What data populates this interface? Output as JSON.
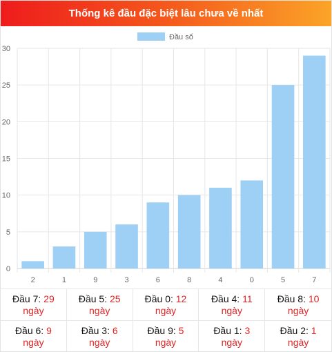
{
  "header": {
    "title": "Thống kê đầu đặc biệt lâu chưa về nhất"
  },
  "colors": {
    "bar": "#9ecff5",
    "accent_red": "#e02424"
  },
  "chart_data": {
    "type": "bar",
    "title": "",
    "xlabel": "",
    "ylabel": "",
    "categories": [
      "2",
      "1",
      "9",
      "3",
      "6",
      "8",
      "4",
      "0",
      "5",
      "7"
    ],
    "series": [
      {
        "name": "Đầu số",
        "values": [
          1,
          3,
          5,
          6,
          9,
          10,
          11,
          12,
          25,
          29
        ]
      }
    ],
    "ylim": [
      0,
      30
    ],
    "yticks": [
      0,
      5,
      10,
      15,
      20,
      25,
      30
    ],
    "grid": true,
    "legend": "top-center"
  },
  "stats": [
    {
      "label": "Đầu 7:",
      "value": "29",
      "unit": "ngày"
    },
    {
      "label": "Đầu 5:",
      "value": "25",
      "unit": "ngày"
    },
    {
      "label": "Đầu 0:",
      "value": "12",
      "unit": "ngày"
    },
    {
      "label": "Đầu 4:",
      "value": "11",
      "unit": "ngày"
    },
    {
      "label": "Đầu 8:",
      "value": "10",
      "unit": "ngày"
    },
    {
      "label": "Đầu 6:",
      "value": "9",
      "unit": "ngày"
    },
    {
      "label": "Đầu 3:",
      "value": "6",
      "unit": "ngày"
    },
    {
      "label": "Đầu 9:",
      "value": "5",
      "unit": "ngày"
    },
    {
      "label": "Đầu 1:",
      "value": "3",
      "unit": "ngày"
    },
    {
      "label": "Đầu 2:",
      "value": "1",
      "unit": "ngày"
    }
  ]
}
